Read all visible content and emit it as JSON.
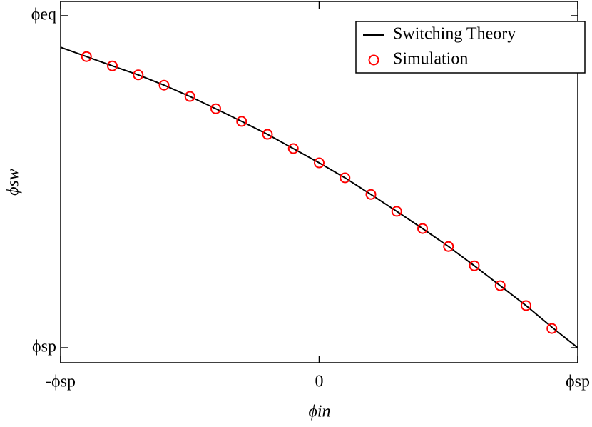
{
  "chart_data": {
    "type": "line",
    "x_label": "ϕin",
    "y_label": "ϕsw",
    "xlim": [
      -1,
      1
    ],
    "ylim": [
      -0.045,
      1.043
    ],
    "xticks": [
      {
        "value": -1,
        "label": "-ϕsp"
      },
      0,
      {
        "value": 1,
        "label": "ϕsp"
      }
    ],
    "yticks": [
      {
        "value": 0,
        "label": "ϕsp"
      },
      {
        "value": 1,
        "label": "ϕeq"
      }
    ],
    "legend": "upper right",
    "series": [
      {
        "name": "Switching Theory",
        "color": "#000000",
        "style": "line",
        "x": [
          -1,
          -0.9,
          -0.8,
          -0.7,
          -0.6,
          -0.5,
          -0.4,
          -0.3,
          -0.2,
          -0.1,
          0,
          0.1,
          0.2,
          0.3,
          0.4,
          0.5,
          0.6,
          0.7,
          0.8,
          0.9,
          1
        ],
        "values": [
          0.905,
          0.877,
          0.849,
          0.822,
          0.791,
          0.757,
          0.72,
          0.682,
          0.643,
          0.6,
          0.557,
          0.512,
          0.462,
          0.411,
          0.359,
          0.305,
          0.247,
          0.187,
          0.127,
          0.062,
          0
        ]
      },
      {
        "name": "Simulation",
        "color": "#ff0000",
        "style": "circle",
        "x": [
          -0.9,
          -0.8,
          -0.7,
          -0.6,
          -0.5,
          -0.4,
          -0.3,
          -0.2,
          -0.1,
          0,
          0.1,
          0.2,
          0.3,
          0.4,
          0.5,
          0.6,
          0.7,
          0.8,
          0.9
        ],
        "values": [
          0.877,
          0.849,
          0.822,
          0.791,
          0.757,
          0.72,
          0.682,
          0.643,
          0.6,
          0.557,
          0.512,
          0.462,
          0.411,
          0.359,
          0.305,
          0.247,
          0.187,
          0.127,
          0.058
        ]
      }
    ]
  }
}
